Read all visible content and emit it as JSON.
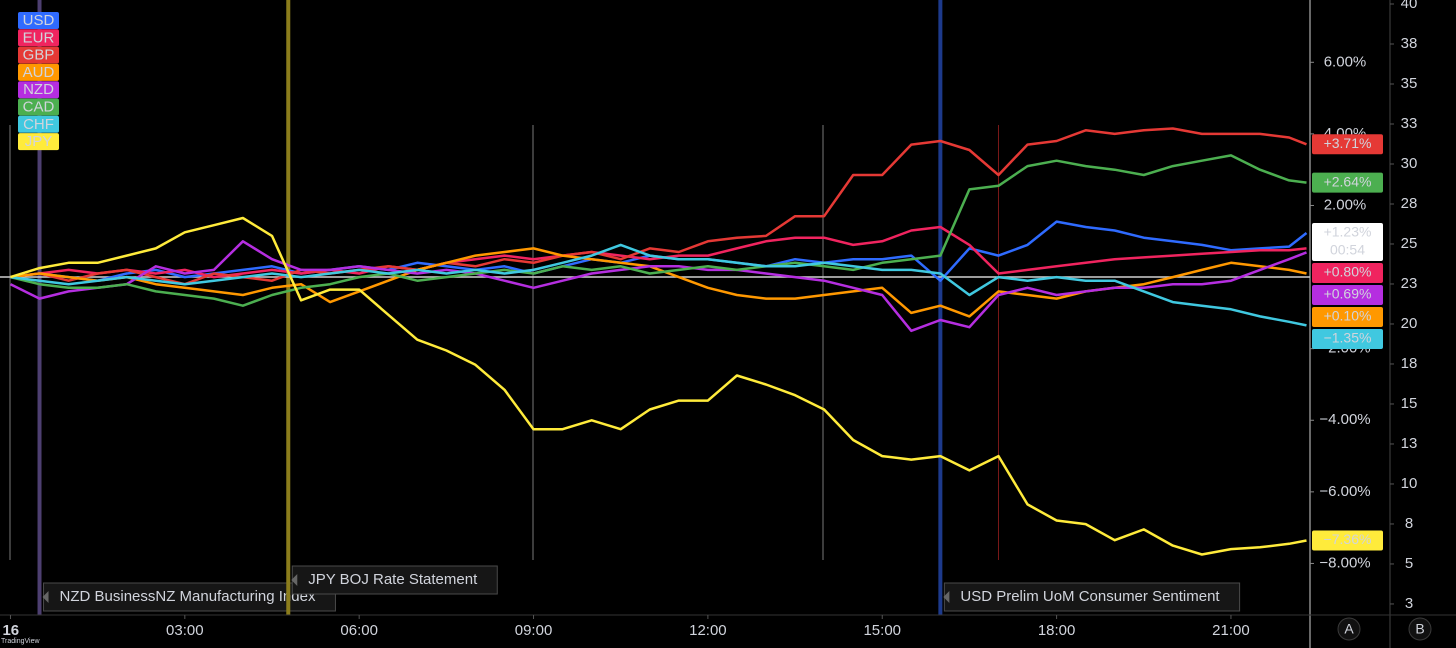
{
  "chart_data": {
    "type": "line",
    "x": [
      0,
      0.5,
      1,
      1.5,
      2,
      2.5,
      3,
      3.5,
      4,
      4.5,
      5,
      5.5,
      6,
      6.5,
      7,
      7.5,
      8,
      8.5,
      9,
      9.5,
      10,
      10.5,
      11,
      11.5,
      12,
      12.5,
      13,
      13.5,
      14,
      14.5,
      15,
      15.5,
      16,
      16.5,
      17,
      17.5,
      18,
      18.5,
      19,
      19.5,
      20,
      20.5,
      21,
      21.5,
      22,
      22.3
    ],
    "xlim": [
      -0.18,
      22.36
    ],
    "xticks": [
      {
        "value": 0,
        "label": "16"
      },
      {
        "value": 3,
        "label": "03:00"
      },
      {
        "value": 6,
        "label": "06:00"
      },
      {
        "value": 9,
        "label": "09:00"
      },
      {
        "value": 12,
        "label": "12:00"
      },
      {
        "value": 15,
        "label": "15:00"
      },
      {
        "value": 18,
        "label": "18:00"
      },
      {
        "value": 21,
        "label": "21:00"
      }
    ],
    "ylim": [
      -9.44,
      7.74
    ],
    "yticks": [
      {
        "value": 6,
        "label": "6.00%"
      },
      {
        "value": 4,
        "label": "4.00%"
      },
      {
        "value": 2,
        "label": "2.00%"
      },
      {
        "value": -2,
        "label": "−2.00%"
      },
      {
        "value": -4,
        "label": "−4.00%"
      },
      {
        "value": -6,
        "label": "−6.00%"
      },
      {
        "value": -8,
        "label": "−8.00%"
      }
    ],
    "y2lim": [
      1.81,
      40.25
    ],
    "y2ticks": [
      40,
      {
        "value": 37.5,
        "label": "38"
      },
      35,
      {
        "value": 32.5,
        "label": "33"
      },
      30,
      {
        "value": 27.5,
        "label": "28"
      },
      25,
      {
        "value": 22.5,
        "label": "23"
      },
      20,
      {
        "value": 17.5,
        "label": "18"
      },
      15,
      {
        "value": 12.5,
        "label": "13"
      },
      10,
      {
        "value": 7.5,
        "label": "8"
      },
      5,
      {
        "value": 2.5,
        "label": "3"
      }
    ],
    "series": [
      {
        "name": "USD",
        "color": "#2f6bff",
        "values": [
          0,
          0.1,
          0,
          -0.1,
          0.1,
          0.2,
          0,
          0.1,
          0.2,
          0.3,
          0.1,
          0.2,
          0.3,
          0.2,
          0.4,
          0.3,
          0.2,
          0.3,
          0.1,
          0.3,
          0.5,
          0.4,
          0.6,
          0.5,
          0.5,
          0.4,
          0.3,
          0.5,
          0.4,
          0.5,
          0.5,
          0.6,
          -0.1,
          0.8,
          0.6,
          0.9,
          1.55,
          1.4,
          1.3,
          1.1,
          1.0,
          0.9,
          0.75,
          0.8,
          0.85,
          1.23
        ],
        "value_labels": [
          null,
          null,
          null,
          null,
          null,
          null,
          null,
          null,
          null,
          null,
          null,
          null,
          null,
          null,
          null,
          null,
          null,
          null,
          null,
          null,
          null,
          null,
          null,
          null,
          null,
          null,
          null,
          null,
          null,
          null,
          null,
          null,
          null,
          null,
          null,
          null,
          null,
          null,
          null,
          null,
          null,
          null,
          null,
          null,
          null,
          "+1.23%"
        ]
      },
      {
        "name": "EUR",
        "color": "#f0245f",
        "values": [
          0,
          0.1,
          0.2,
          0.1,
          0.2,
          0.1,
          0.2,
          0,
          0.1,
          0.2,
          0.1,
          0.2,
          0.1,
          0.3,
          0.2,
          0.4,
          0.5,
          0.6,
          0.5,
          0.6,
          0.7,
          0.6,
          0.5,
          0.6,
          0.6,
          0.8,
          1.0,
          1.1,
          1.1,
          0.9,
          1.0,
          1.3,
          1.4,
          0.9,
          0.1,
          0.2,
          0.3,
          0.4,
          0.5,
          0.55,
          0.6,
          0.65,
          0.7,
          0.75,
          0.75,
          0.8
        ],
        "value_labels": [
          null,
          null,
          null,
          null,
          null,
          null,
          null,
          null,
          null,
          null,
          null,
          null,
          null,
          null,
          null,
          null,
          null,
          null,
          null,
          null,
          null,
          null,
          null,
          null,
          null,
          null,
          null,
          null,
          null,
          null,
          null,
          null,
          null,
          null,
          null,
          null,
          null,
          null,
          null,
          null,
          null,
          null,
          null,
          null,
          null,
          "+0.80%"
        ]
      },
      {
        "name": "GBP",
        "color": "#e53935",
        "values": [
          0,
          0.1,
          -0.1,
          0.1,
          0.2,
          0,
          -0.2,
          0.1,
          0,
          -0.1,
          0.2,
          0.1,
          0.2,
          0.3,
          0.2,
          0.4,
          0.3,
          0.5,
          0.4,
          0.6,
          0.7,
          0.5,
          0.8,
          0.7,
          1.0,
          1.1,
          1.15,
          1.7,
          1.7,
          2.85,
          2.85,
          3.7,
          3.8,
          3.55,
          2.85,
          3.7,
          3.8,
          4.1,
          4.0,
          4.1,
          4.15,
          4.0,
          4.0,
          4.0,
          3.9,
          3.71
        ],
        "value_labels": [
          null,
          null,
          null,
          null,
          null,
          null,
          null,
          null,
          null,
          null,
          null,
          null,
          null,
          null,
          null,
          null,
          null,
          null,
          null,
          null,
          null,
          null,
          null,
          null,
          null,
          null,
          null,
          null,
          null,
          null,
          null,
          null,
          null,
          null,
          null,
          null,
          null,
          null,
          null,
          null,
          null,
          null,
          null,
          null,
          null,
          "+3.71%"
        ]
      },
      {
        "name": "AUD",
        "color": "#ff9800",
        "values": [
          0,
          0.1,
          0,
          -0.1,
          0,
          -0.2,
          -0.3,
          -0.4,
          -0.5,
          -0.3,
          -0.2,
          -0.7,
          -0.4,
          -0.1,
          0.2,
          0.4,
          0.6,
          0.7,
          0.8,
          0.6,
          0.5,
          0.4,
          0.3,
          0,
          -0.3,
          -0.5,
          -0.6,
          -0.6,
          -0.5,
          -0.4,
          -0.3,
          -1.0,
          -0.8,
          -1.1,
          -0.4,
          -0.5,
          -0.6,
          -0.4,
          -0.3,
          -0.2,
          0.0,
          0.2,
          0.4,
          0.3,
          0.2,
          0.1
        ],
        "value_labels": [
          null,
          null,
          null,
          null,
          null,
          null,
          null,
          null,
          null,
          null,
          null,
          null,
          null,
          null,
          null,
          null,
          null,
          null,
          null,
          null,
          null,
          null,
          null,
          null,
          null,
          null,
          null,
          null,
          null,
          null,
          null,
          null,
          null,
          null,
          null,
          null,
          null,
          null,
          null,
          null,
          null,
          null,
          null,
          null,
          null,
          "+0.10%"
        ]
      },
      {
        "name": "NZD",
        "color": "#b52ee0",
        "values": [
          -0.2,
          -0.6,
          -0.4,
          -0.3,
          -0.2,
          0.3,
          0.1,
          0.2,
          1.0,
          0.5,
          0.2,
          0.2,
          0.3,
          0.2,
          0.1,
          0.2,
          0.1,
          -0.1,
          -0.3,
          -0.1,
          0.1,
          0.2,
          0.3,
          0.3,
          0.2,
          0.2,
          0.1,
          0,
          -0.1,
          -0.3,
          -0.5,
          -1.5,
          -1.2,
          -1.4,
          -0.5,
          -0.3,
          -0.5,
          -0.4,
          -0.3,
          -0.3,
          -0.2,
          -0.2,
          -0.1,
          0.2,
          0.5,
          0.69
        ],
        "value_labels": [
          null,
          null,
          null,
          null,
          null,
          null,
          null,
          null,
          null,
          null,
          null,
          null,
          null,
          null,
          null,
          null,
          null,
          null,
          null,
          null,
          null,
          null,
          null,
          null,
          null,
          null,
          null,
          null,
          null,
          null,
          null,
          null,
          null,
          null,
          null,
          null,
          null,
          null,
          null,
          null,
          null,
          null,
          null,
          null,
          null,
          "+0.69%"
        ]
      },
      {
        "name": "CAD",
        "color": "#4caf50",
        "values": [
          0,
          -0.2,
          -0.3,
          -0.3,
          -0.2,
          -0.4,
          -0.5,
          -0.6,
          -0.8,
          -0.5,
          -0.3,
          -0.2,
          0,
          0.1,
          -0.1,
          0,
          0.1,
          0.2,
          0.1,
          0.3,
          0.2,
          0.3,
          0.1,
          0.2,
          0.3,
          0.2,
          0.3,
          0.4,
          0.3,
          0.2,
          0.4,
          0.5,
          0.6,
          2.45,
          2.55,
          3.1,
          3.25,
          3.1,
          3.0,
          2.85,
          3.1,
          3.25,
          3.4,
          3.0,
          2.7,
          2.64
        ],
        "value_labels": [
          null,
          null,
          null,
          null,
          null,
          null,
          null,
          null,
          null,
          null,
          null,
          null,
          null,
          null,
          null,
          null,
          null,
          null,
          null,
          null,
          null,
          null,
          null,
          null,
          null,
          null,
          null,
          null,
          null,
          null,
          null,
          null,
          null,
          null,
          null,
          null,
          null,
          null,
          null,
          null,
          null,
          null,
          null,
          null,
          null,
          "+2.64%"
        ]
      },
      {
        "name": "CHF",
        "color": "#40c8e0",
        "values": [
          0,
          -0.1,
          -0.2,
          -0.1,
          0,
          -0.1,
          -0.2,
          -0.1,
          0,
          0.1,
          0,
          0.1,
          0.2,
          0.1,
          0.2,
          0.1,
          0.2,
          0.1,
          0.2,
          0.4,
          0.6,
          0.9,
          0.6,
          0.5,
          0.5,
          0.4,
          0.3,
          0.3,
          0.4,
          0.3,
          0.2,
          0.2,
          0.1,
          -0.5,
          0,
          -0.1,
          0,
          -0.1,
          -0.1,
          -0.4,
          -0.7,
          -0.8,
          -0.9,
          -1.1,
          -1.25,
          -1.35
        ],
        "value_labels": [
          null,
          null,
          null,
          null,
          null,
          null,
          null,
          null,
          null,
          null,
          null,
          null,
          null,
          null,
          null,
          null,
          null,
          null,
          null,
          null,
          null,
          null,
          null,
          null,
          null,
          null,
          null,
          null,
          null,
          null,
          null,
          null,
          null,
          null,
          null,
          null,
          null,
          null,
          null,
          null,
          null,
          null,
          null,
          null,
          null,
          "−1.35%"
        ]
      },
      {
        "name": "JPY",
        "color": "#ffeb3b",
        "values": [
          0,
          0.25,
          0.4,
          0.4,
          0.6,
          0.8,
          1.25,
          1.45,
          1.65,
          1.15,
          -0.65,
          -0.35,
          -0.35,
          -1.05,
          -1.75,
          -2.05,
          -2.45,
          -3.15,
          -4.25,
          -4.25,
          -4.0,
          -4.25,
          -3.7,
          -3.45,
          -3.45,
          -2.75,
          -3.0,
          -3.3,
          -3.7,
          -4.55,
          -5.0,
          -5.1,
          -5.0,
          -5.4,
          -5.0,
          -6.35,
          -6.8,
          -6.9,
          -7.35,
          -7.05,
          -7.5,
          -7.75,
          -7.6,
          -7.55,
          -7.45,
          -7.36
        ],
        "value_labels": [
          null,
          null,
          null,
          null,
          null,
          null,
          null,
          null,
          null,
          null,
          null,
          null,
          null,
          null,
          null,
          null,
          null,
          null,
          null,
          null,
          null,
          null,
          null,
          null,
          null,
          null,
          null,
          null,
          null,
          null,
          null,
          null,
          null,
          null,
          null,
          null,
          null,
          null,
          null,
          null,
          null,
          null,
          null,
          null,
          null,
          "−7.36%"
        ]
      }
    ],
    "countdown": "00:54",
    "events": [
      {
        "x": 0.5,
        "color": "#4d3f70",
        "label": "NZD BusinessNZ Manufacturing Index"
      },
      {
        "x": 4.78,
        "color": "#8c7d1c",
        "label": "JPY BOJ Rate Statement"
      },
      {
        "x": 16.0,
        "color": "#1d3a8c",
        "label": "USD Prelim UoM Consumer Sentiment"
      },
      {
        "x": 17.0,
        "color": "#7a1818"
      }
    ],
    "brand": "TradingView",
    "buttons": [
      "A",
      "B"
    ]
  }
}
